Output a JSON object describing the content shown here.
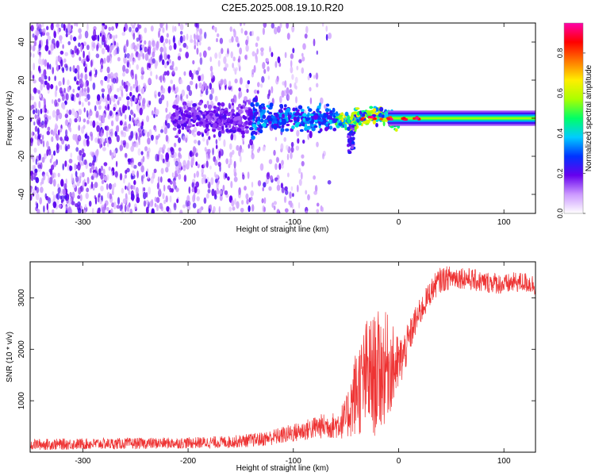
{
  "figure": {
    "title": "C2E5.2025.008.19.10.R20"
  },
  "chart_data": [
    {
      "type": "heatmap",
      "title": "C2E5.2025.008.19.10.R20",
      "xlabel": "Height of straight line (km)",
      "ylabel": "Frequency (Hz)",
      "xlim": [
        -350,
        130
      ],
      "ylim": [
        -50,
        50
      ],
      "xticks": [
        -300,
        -200,
        -100,
        0,
        100
      ],
      "yticks": [
        -40,
        -20,
        0,
        20,
        40
      ],
      "description_values": {
        "noise_region_x": [
          -350,
          -65
        ],
        "signal_emergence_x": -130,
        "signal_band_hz": [
          -8,
          8
        ],
        "spectral_width_after_0km_hz": [
          -4,
          4
        ],
        "vertical_tail_x": -45,
        "vertical_tail_min_hz": -18
      },
      "colorbar": {
        "label": "Normalized spectral amplitude",
        "range": [
          0,
          0.95
        ],
        "ticks": [
          "0.0",
          "0.2",
          "0.4",
          "0.6",
          "0.8"
        ],
        "colors": [
          "#ffffff",
          "#cc99ff",
          "#6600ee",
          "#0033ff",
          "#00ccff",
          "#00ff66",
          "#aaff00",
          "#ffee00",
          "#ff7700",
          "#ff0000",
          "#ff00aa"
        ]
      }
    },
    {
      "type": "line",
      "xlabel": "Height of straight line (km)",
      "ylabel": "SNR (10 * v/v)",
      "xlim": [
        -350,
        130
      ],
      "ylim": [
        0,
        3700
      ],
      "xticks": [
        -300,
        -200,
        -100,
        0,
        100
      ],
      "yticks": [
        1000,
        2000,
        3000
      ],
      "series": [
        {
          "name": "SNR",
          "color": "#ee3333",
          "x": [
            -350,
            -300,
            -250,
            -200,
            -160,
            -130,
            -110,
            -90,
            -75,
            -60,
            -50,
            -40,
            -35,
            -30,
            -25,
            -20,
            -15,
            -10,
            -5,
            0,
            5,
            10,
            15,
            20,
            25,
            30,
            35,
            40,
            50,
            60,
            70,
            80,
            90,
            100,
            110,
            120,
            130
          ],
          "y": [
            150,
            160,
            170,
            180,
            200,
            250,
            330,
            420,
            500,
            520,
            650,
            1200,
            1300,
            1500,
            1450,
            1550,
            1600,
            1700,
            1650,
            1700,
            1900,
            2200,
            2500,
            2700,
            2900,
            3100,
            3250,
            3350,
            3400,
            3400,
            3350,
            3300,
            3300,
            3250,
            3300,
            3300,
            3250
          ],
          "noise": [
            110,
            110,
            110,
            110,
            120,
            140,
            170,
            200,
            240,
            260,
            400,
            900,
            1000,
            1150,
            1200,
            1200,
            1150,
            1000,
            800,
            550,
            450,
            350,
            300,
            280,
            260,
            250,
            250,
            250,
            230,
            220,
            220,
            210,
            210,
            200,
            200,
            200,
            200
          ]
        }
      ]
    }
  ]
}
